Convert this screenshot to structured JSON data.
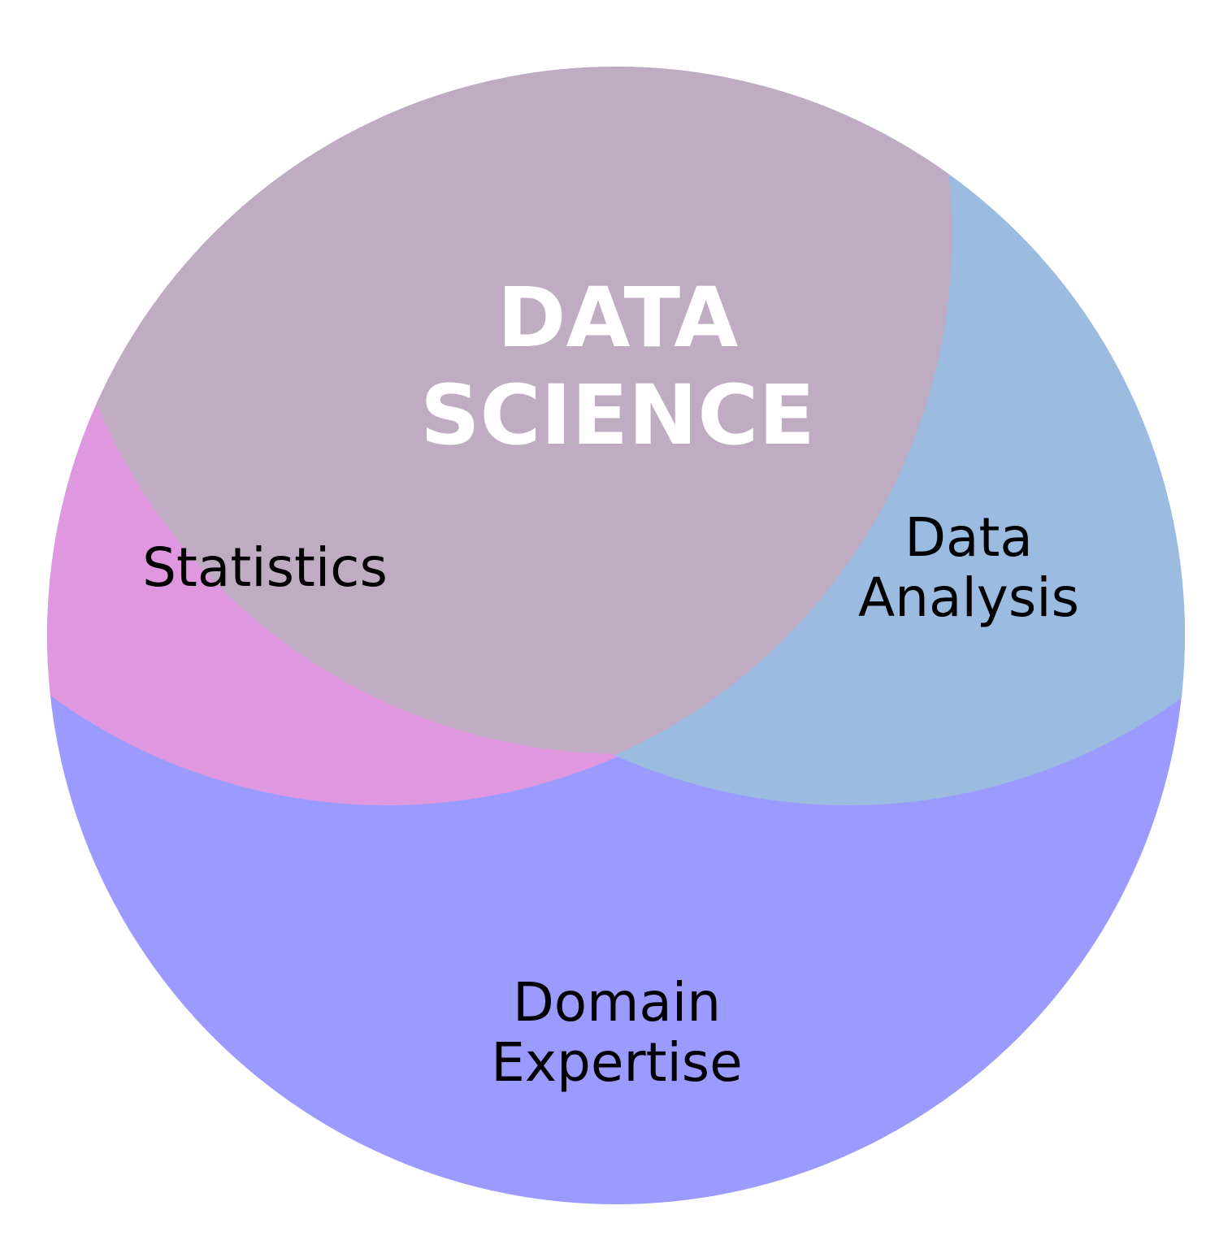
{
  "diagram": {
    "title_lines": [
      "DATA",
      "SCIENCE"
    ],
    "regions": [
      {
        "id": "statistics",
        "label_lines": [
          "Statistics"
        ],
        "color": "#df98df"
      },
      {
        "id": "data-analysis",
        "label_lines": [
          "Data",
          "Analysis"
        ],
        "color": "#9bbbe1"
      },
      {
        "id": "domain-expertise",
        "label_lines": [
          "Domain",
          "Expertise"
        ],
        "color": "#9b9bff"
      },
      {
        "id": "data-science",
        "label_lines": [
          "DATA",
          "SCIENCE"
        ],
        "color": "#c0acc2"
      }
    ],
    "title_color": "#ffffff",
    "label_color": "#000000",
    "background": "#ffffff"
  }
}
